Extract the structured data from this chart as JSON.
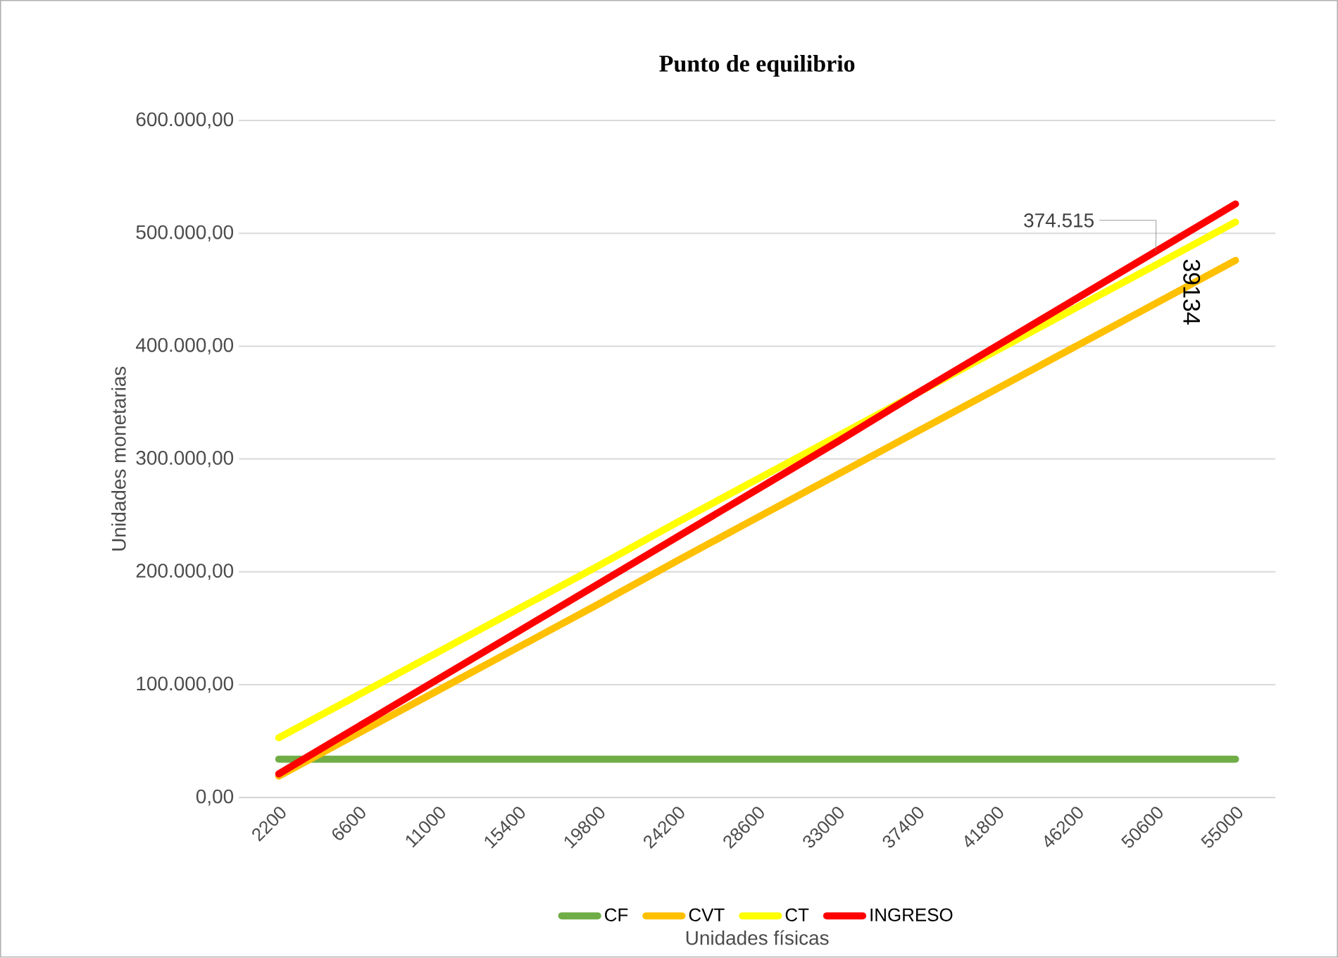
{
  "chart_data": {
    "type": "line",
    "title": "Punto de equilibrio",
    "xlabel": "Unidades físicas",
    "ylabel": "Unidades monetarias",
    "categories": [
      "2200",
      "6600",
      "11000",
      "15400",
      "19800",
      "24200",
      "28600",
      "33000",
      "37400",
      "41800",
      "46200",
      "50600",
      "55000"
    ],
    "series": [
      {
        "name": "CF",
        "color": "#70ad47",
        "values": [
          34000,
          34000,
          34000,
          34000,
          34000,
          34000,
          34000,
          34000,
          34000,
          34000,
          34000,
          34000,
          34000
        ]
      },
      {
        "name": "CVT",
        "color": "#ffc000",
        "values": [
          19000,
          57000,
          95000,
          133000,
          171000,
          210000,
          248000,
          286000,
          324000,
          362000,
          400000,
          438000,
          476000
        ]
      },
      {
        "name": "CT",
        "color": "#ffff00",
        "values": [
          53000,
          91000,
          129000,
          167000,
          205000,
          244000,
          282000,
          320000,
          358000,
          396000,
          434000,
          472000,
          510000
        ]
      },
      {
        "name": "INGRESO",
        "color": "#ff0000",
        "values": [
          21000,
          63000,
          105000,
          147000,
          189000,
          231000,
          273000,
          315000,
          358000,
          400000,
          442000,
          484000,
          526000
        ]
      }
    ],
    "ylim": [
      0,
      600000
    ],
    "yticks": [
      {
        "value": 0,
        "label": "0,00"
      },
      {
        "value": 100000,
        "label": "100.000,00"
      },
      {
        "value": 200000,
        "label": "200.000,00"
      },
      {
        "value": 300000,
        "label": "300.000,00"
      },
      {
        "value": 400000,
        "label": "400.000,00"
      },
      {
        "value": 500000,
        "label": "500.000,00"
      },
      {
        "value": 600000,
        "label": "600.000,00"
      }
    ],
    "grid": "y",
    "legend": "bottom",
    "marker": "none",
    "line_style": "solid",
    "annotations": [
      {
        "text": "374.515",
        "x": "50600",
        "y": 484000
      },
      "39134"
    ]
  }
}
